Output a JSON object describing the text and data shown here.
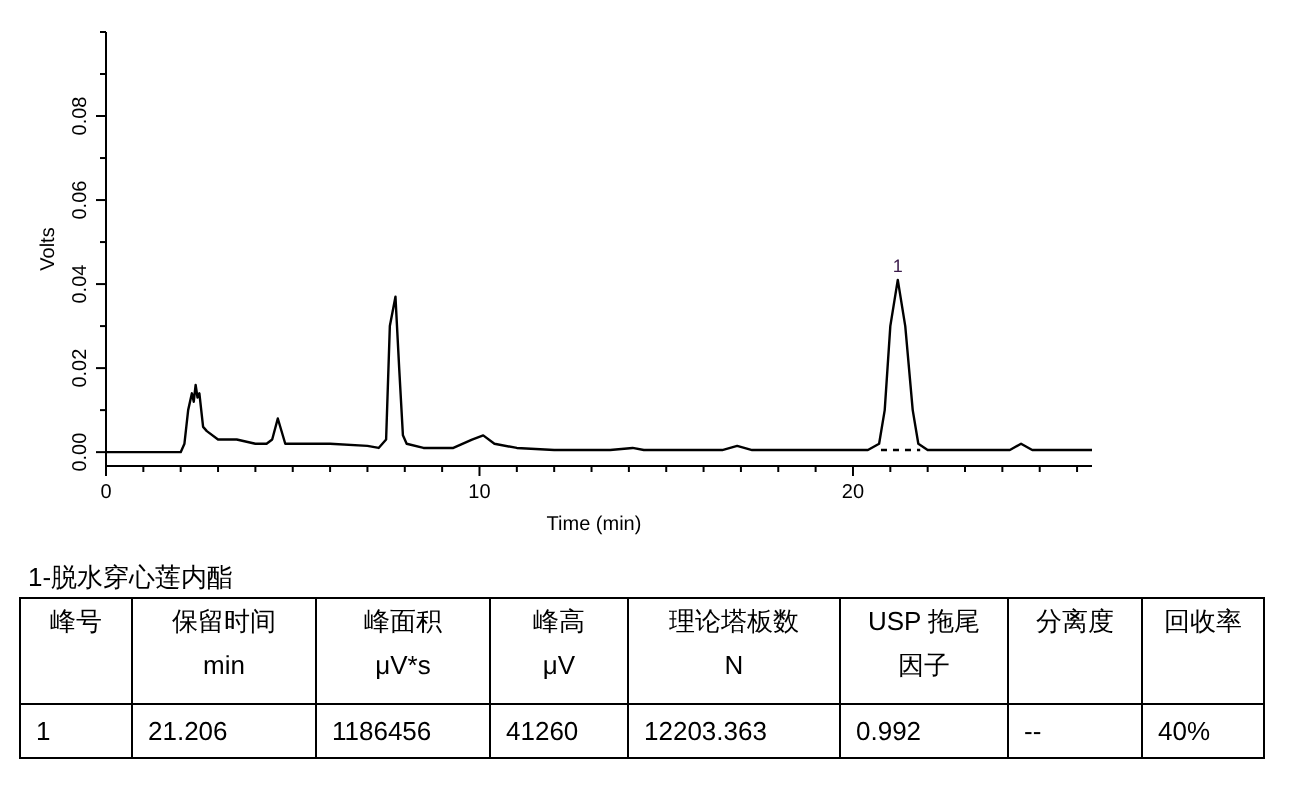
{
  "chart_data": [
    {
      "type": "line",
      "xlabel": "Time (min)",
      "ylabel": "Volts",
      "xlim": [
        0,
        26.4
      ],
      "ylim": [
        -0.0033,
        0.1
      ],
      "xticks": [
        0,
        {
          "value": 1,
          "label": null
        },
        {
          "value": 2,
          "label": null
        },
        {
          "value": 3,
          "label": null
        },
        {
          "value": 4,
          "label": null
        },
        {
          "value": 5,
          "label": null
        },
        {
          "value": 6,
          "label": null
        },
        {
          "value": 7,
          "label": null
        },
        {
          "value": 8,
          "label": null
        },
        {
          "value": 9,
          "label": null
        },
        10,
        {
          "value": 11,
          "label": null
        },
        {
          "value": 12,
          "label": null
        },
        {
          "value": 13,
          "label": null
        },
        {
          "value": 14,
          "label": null
        },
        {
          "value": 15,
          "label": null
        },
        {
          "value": 16,
          "label": null
        },
        {
          "value": 17,
          "label": null
        },
        {
          "value": 18,
          "label": null
        },
        {
          "value": 19,
          "label": null
        },
        20,
        {
          "value": 21,
          "label": null
        },
        {
          "value": 22,
          "label": null
        },
        {
          "value": 23,
          "label": null
        },
        {
          "value": 24,
          "label": null
        },
        {
          "value": 25,
          "label": null
        },
        {
          "value": 26,
          "label": null
        }
      ],
      "yticks": [
        {
          "value": 0,
          "label": "0.00"
        },
        {
          "value": 0.01,
          "label": null
        },
        {
          "value": 0.02,
          "label": "0.02"
        },
        {
          "value": 0.03,
          "label": null
        },
        {
          "value": 0.04,
          "label": "0.04"
        },
        {
          "value": 0.05,
          "label": null
        },
        {
          "value": 0.06,
          "label": "0.06"
        },
        {
          "value": 0.07,
          "label": null
        },
        {
          "value": 0.08,
          "label": "0.08"
        },
        {
          "value": 0.09,
          "label": null
        },
        {
          "value": 0.1,
          "label": null
        }
      ],
      "series": [
        {
          "color": "#000000",
          "line_style": "solid",
          "x": [
            0,
            2.0,
            2.1,
            2.2,
            2.3,
            2.35,
            2.4,
            2.45,
            2.5,
            2.6,
            2.7,
            3.0,
            3.5,
            4.0,
            4.3,
            4.45,
            4.6,
            4.8,
            5.5,
            6.0,
            7.0,
            7.3,
            7.5,
            7.6,
            7.75,
            7.85,
            7.95,
            8.05,
            8.5,
            9.3,
            9.8,
            10.1,
            10.4,
            11.0,
            12.0,
            13.5,
            14.1,
            14.4,
            16.5,
            16.9,
            17.3,
            20.4,
            20.7,
            20.85,
            21.0,
            21.2,
            21.4,
            21.6,
            21.75,
            22.0,
            24.2,
            24.5,
            24.8,
            26.4
          ],
          "values": [
            0,
            0,
            0.002,
            0.01,
            0.014,
            0.012,
            0.016,
            0.013,
            0.014,
            0.006,
            0.005,
            0.003,
            0.003,
            0.002,
            0.002,
            0.003,
            0.008,
            0.002,
            0.002,
            0.002,
            0.0015,
            0.001,
            0.003,
            0.03,
            0.037,
            0.02,
            0.004,
            0.002,
            0.001,
            0.001,
            0.003,
            0.004,
            0.002,
            0.001,
            0.0005,
            0.0005,
            0.001,
            0.0005,
            0.0005,
            0.0015,
            0.0005,
            0.0005,
            0.002,
            0.01,
            0.03,
            0.041,
            0.03,
            0.01,
            0.002,
            0.0005,
            0.0005,
            0.002,
            0.0005,
            0.0005
          ]
        },
        {
          "color": "#000000",
          "line_style": "dashed",
          "x": [
            20.75,
            21.8
          ],
          "values": [
            0.0005,
            0.0005
          ]
        }
      ],
      "annotations": [
        {
          "text": "1",
          "x": 21.2,
          "y": 0.041
        }
      ]
    },
    {
      "type": "other",
      "title": "1-脱水穿心莲内酯",
      "annotations": [
        "峰号",
        "保留时间\nmin",
        "峰面积\nμV*s",
        "峰高\nμV",
        "理论塔板数\nN",
        "USP 拖尾因子",
        "分离度",
        "回收率",
        "1",
        "21.206",
        "1186456",
        "41260",
        "12203.363",
        "0.992",
        "--",
        "40%"
      ]
    }
  ]
}
